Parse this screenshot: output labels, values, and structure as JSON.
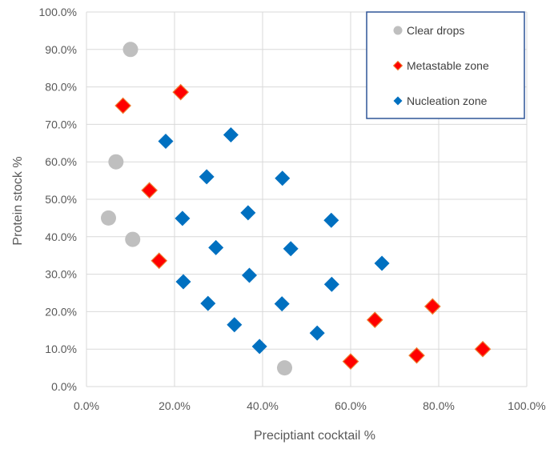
{
  "chart_data": {
    "type": "scatter",
    "title": "",
    "xlabel": "Preciptiant cocktail %",
    "ylabel": "Protein stock %",
    "xlim": [
      0,
      100
    ],
    "ylim": [
      0,
      100
    ],
    "xticks": [
      "0.0%",
      "20.0%",
      "40.0%",
      "60.0%",
      "80.0%",
      "100.0%"
    ],
    "yticks": [
      "0.0%",
      "10.0%",
      "20.0%",
      "30.0%",
      "40.0%",
      "50.0%",
      "60.0%",
      "70.0%",
      "80.0%",
      "90.0%",
      "100.0%"
    ],
    "grid": true,
    "legend_position": "top-right",
    "series": [
      {
        "name": "Clear drops",
        "marker": "circle",
        "color": "#BFBFBF",
        "points": [
          [
            10,
            90
          ],
          [
            6.7,
            60
          ],
          [
            5,
            45
          ],
          [
            10.5,
            39.3
          ],
          [
            45,
            5
          ]
        ]
      },
      {
        "name": "Metastable zone",
        "marker": "diamond",
        "color": "#FF0000",
        "edge_color": "#ED7D31",
        "points": [
          [
            8.3,
            75
          ],
          [
            21.4,
            78.6
          ],
          [
            14.3,
            52.4
          ],
          [
            16.5,
            33.6
          ],
          [
            60,
            6.7
          ],
          [
            65.5,
            17.8
          ],
          [
            75,
            8.3
          ],
          [
            78.6,
            21.4
          ],
          [
            90,
            10
          ]
        ]
      },
      {
        "name": "Nucleation zone",
        "marker": "diamond",
        "color": "#0070C0",
        "points": [
          [
            18,
            65.5
          ],
          [
            32.8,
            67.2
          ],
          [
            27.3,
            56
          ],
          [
            44.5,
            55.6
          ],
          [
            21.8,
            44.9
          ],
          [
            36.7,
            46.4
          ],
          [
            55.6,
            44.4
          ],
          [
            29.4,
            37.1
          ],
          [
            46.4,
            36.8
          ],
          [
            67.1,
            32.9
          ],
          [
            22,
            28
          ],
          [
            37,
            29.7
          ],
          [
            55.7,
            27.3
          ],
          [
            27.6,
            22.2
          ],
          [
            44.4,
            22.1
          ],
          [
            33.6,
            16.5
          ],
          [
            52.4,
            14.3
          ],
          [
            39.3,
            10.7
          ]
        ]
      }
    ]
  }
}
